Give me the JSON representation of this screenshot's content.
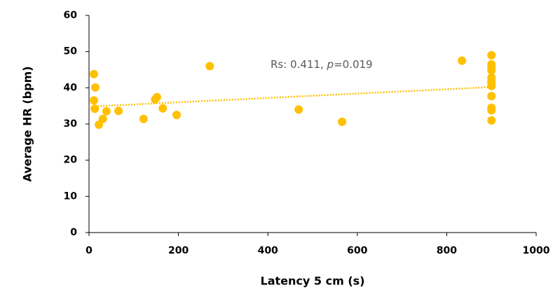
{
  "chart_data": {
    "type": "scatter",
    "x_label": "Latency 5 cm (s)",
    "y_label": "Average HR (bpm)",
    "annotation_parts": [
      "Rs: 0.411, ",
      "p",
      "=0.019"
    ],
    "color": "#FFC000",
    "x": [
      11,
      14,
      11,
      13,
      22,
      31,
      39,
      66,
      122,
      148,
      152,
      165,
      196,
      270,
      469,
      566,
      834,
      900,
      900,
      900,
      900,
      900,
      900,
      900,
      900,
      900,
      900,
      900,
      900
    ],
    "values": [
      43.8,
      40.1,
      36.5,
      34.2,
      29.8,
      31.4,
      33.5,
      33.6,
      31.4,
      36.8,
      37.4,
      34.3,
      32.5,
      46,
      34,
      30.6,
      47.5,
      49,
      46.5,
      45.5,
      44.8,
      42.8,
      42,
      41.5,
      40.5,
      37.7,
      34.5,
      33.8,
      31
    ],
    "trendline": {
      "x": [
        0,
        900
      ],
      "values": [
        34.8,
        40.2
      ]
    },
    "xlim": [
      0,
      1000
    ],
    "xticks": [
      0,
      200,
      400,
      600,
      800,
      1000
    ],
    "ylim": [
      0,
      60
    ],
    "yticks": [
      0,
      10,
      20,
      30,
      40,
      50,
      60
    ]
  }
}
